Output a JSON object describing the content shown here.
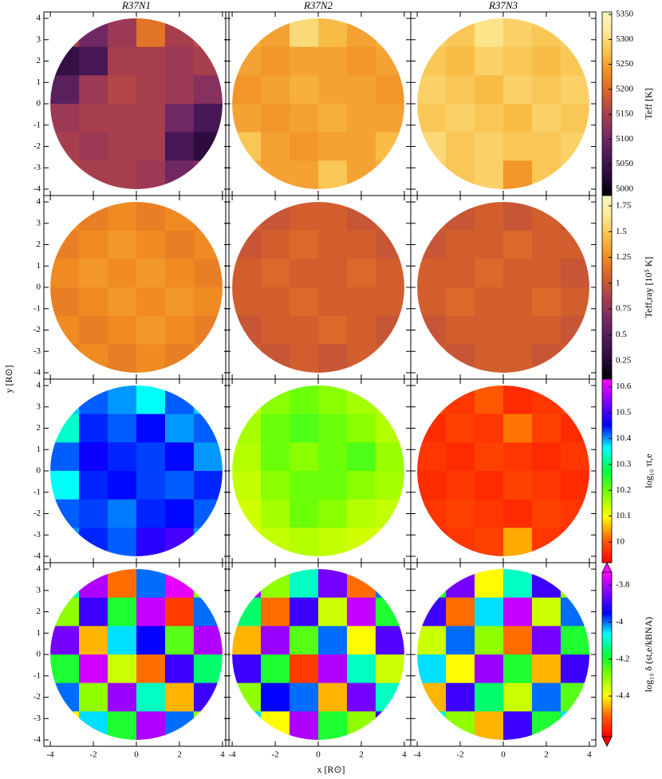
{
  "chart_data": {
    "type": "heatmap",
    "columns": [
      "R37N1",
      "R37N2",
      "R37N3"
    ],
    "x_label": "x [R⊙]",
    "y_label": "y [R⊙]",
    "xlim": [
      -4.3,
      4.3
    ],
    "ylim": [
      -4.3,
      4.3
    ],
    "xticks": [
      -4,
      -2,
      0,
      2,
      4
    ],
    "yticks": [
      -4,
      -3,
      -2,
      -1,
      0,
      1,
      2,
      3,
      4
    ],
    "rows": [
      {
        "colorbar_label": "Teff [K]",
        "clim": [
          4987,
          5355
        ],
        "cticks": [
          5000,
          5050,
          5100,
          5150,
          5200,
          5250,
          5300,
          5350
        ],
        "extend": false,
        "colors": [
          "#000004",
          "#2a0a3c",
          "#4e1a5a",
          "#7a2c64",
          "#a83e4e",
          "#d4602c",
          "#f08c22",
          "#f9c04a",
          "#fbe890",
          "#fcf8c8"
        ],
        "panels": [
          [
            [
              5150,
              5100,
              5140,
              5210,
              5150,
              5170
            ],
            [
              5040,
              5060,
              5150,
              5150,
              5140,
              5150
            ],
            [
              5080,
              5140,
              5160,
              5150,
              5140,
              5120
            ],
            [
              5140,
              5150,
              5150,
              5150,
              5100,
              5060
            ],
            [
              5150,
              5140,
              5150,
              5150,
              5060,
              5030
            ],
            [
              5160,
              5150,
              5150,
              5140,
              5100,
              5120
            ]
          ],
          [
            [
              5260,
              5250,
              5300,
              5270,
              5250,
              5260
            ],
            [
              5250,
              5240,
              5250,
              5250,
              5240,
              5250
            ],
            [
              5240,
              5250,
              5260,
              5250,
              5250,
              5240
            ],
            [
              5250,
              5240,
              5250,
              5260,
              5250,
              5250
            ],
            [
              5280,
              5250,
              5240,
              5250,
              5250,
              5270
            ],
            [
              5260,
              5250,
              5250,
              5280,
              5250,
              5260
            ]
          ],
          [
            [
              5290,
              5280,
              5310,
              5290,
              5280,
              5290
            ],
            [
              5280,
              5270,
              5290,
              5280,
              5270,
              5280
            ],
            [
              5290,
              5280,
              5270,
              5290,
              5280,
              5290
            ],
            [
              5280,
              5290,
              5280,
              5270,
              5290,
              5280
            ],
            [
              5300,
              5280,
              5290,
              5280,
              5280,
              5290
            ],
            [
              5290,
              5280,
              5290,
              5240,
              5280,
              5290
            ]
          ]
        ]
      },
      {
        "colorbar_label": "Teff,ray [10⁵ K]",
        "clim": [
          0.07,
          1.85
        ],
        "cticks": [
          0.25,
          0.5,
          0.75,
          1.0,
          1.25,
          1.5,
          1.75
        ],
        "extend": false,
        "colors": [
          "#000004",
          "#2a0a3c",
          "#4e1a5a",
          "#7a2c64",
          "#a83e4e",
          "#d4602c",
          "#f08c22",
          "#f9c04a",
          "#fbe890",
          "#fcf8c8"
        ],
        "panels": [
          [
            [
              1.25,
              1.2,
              1.25,
              1.2,
              1.25,
              1.2
            ],
            [
              1.2,
              1.25,
              1.3,
              1.25,
              1.2,
              1.25
            ],
            [
              1.25,
              1.3,
              1.25,
              1.3,
              1.25,
              1.2
            ],
            [
              1.2,
              1.25,
              1.3,
              1.25,
              1.3,
              1.25
            ],
            [
              1.25,
              1.2,
              1.25,
              1.3,
              1.25,
              1.2
            ],
            [
              1.2,
              1.25,
              1.2,
              1.25,
              1.2,
              1.25
            ]
          ],
          [
            [
              1.05,
              1.0,
              1.05,
              1.05,
              1.0,
              1.05
            ],
            [
              1.0,
              1.05,
              1.1,
              1.05,
              1.05,
              1.0
            ],
            [
              1.05,
              1.1,
              1.05,
              1.05,
              1.1,
              1.05
            ],
            [
              1.05,
              1.05,
              1.1,
              1.05,
              1.05,
              1.05
            ],
            [
              1.0,
              1.05,
              1.05,
              1.1,
              1.05,
              1.0
            ],
            [
              1.05,
              1.0,
              1.05,
              1.0,
              1.05,
              1.05
            ]
          ],
          [
            [
              1.05,
              1.0,
              1.05,
              1.0,
              1.05,
              1.0
            ],
            [
              1.0,
              1.05,
              1.05,
              1.1,
              1.05,
              1.05
            ],
            [
              1.05,
              1.05,
              1.1,
              1.05,
              1.05,
              1.0
            ],
            [
              1.05,
              1.1,
              1.05,
              1.05,
              1.1,
              1.05
            ],
            [
              1.0,
              1.05,
              1.05,
              1.05,
              1.05,
              1.0
            ],
            [
              1.05,
              1.0,
              1.05,
              1.05,
              1.0,
              1.05
            ]
          ]
        ]
      },
      {
        "colorbar_label": "log₁₀ τt,e",
        "clim": [
          9.92,
          10.63
        ],
        "cticks": [
          10.0,
          10.1,
          10.2,
          10.3,
          10.4,
          10.5,
          10.6
        ],
        "extend": false,
        "colors": [
          "#ff0000",
          "#ff6000",
          "#ffff00",
          "#80ff00",
          "#00ff40",
          "#00ffff",
          "#0000ff",
          "#8000ff",
          "#ff00ff"
        ],
        "panels": [
          [
            [
              10.38,
              10.42,
              10.4,
              10.36,
              10.42,
              10.38
            ],
            [
              10.34,
              10.44,
              10.42,
              10.45,
              10.4,
              10.42
            ],
            [
              10.42,
              10.46,
              10.44,
              10.43,
              10.45,
              10.4
            ],
            [
              10.36,
              10.44,
              10.45,
              10.43,
              10.42,
              10.44
            ],
            [
              10.42,
              10.43,
              10.41,
              10.44,
              10.45,
              10.42
            ],
            [
              10.4,
              10.44,
              10.42,
              10.48,
              10.5,
              10.4
            ]
          ],
          [
            [
              10.14,
              10.18,
              10.2,
              10.18,
              10.16,
              10.15
            ],
            [
              10.16,
              10.2,
              10.22,
              10.2,
              10.18,
              10.15
            ],
            [
              10.15,
              10.2,
              10.18,
              10.2,
              10.22,
              10.17
            ],
            [
              10.14,
              10.18,
              10.2,
              10.2,
              10.18,
              10.16
            ],
            [
              10.13,
              10.16,
              10.2,
              10.18,
              10.15,
              10.14
            ],
            [
              10.12,
              10.14,
              10.15,
              10.14,
              10.13,
              10.12
            ]
          ],
          [
            [
              9.98,
              9.97,
              10.0,
              9.96,
              9.97,
              9.98
            ],
            [
              9.96,
              9.98,
              9.97,
              10.02,
              9.98,
              9.96
            ],
            [
              9.97,
              9.96,
              9.98,
              9.97,
              9.96,
              9.97
            ],
            [
              9.96,
              9.97,
              9.96,
              9.98,
              9.97,
              9.96
            ],
            [
              9.97,
              9.98,
              9.97,
              9.96,
              9.98,
              9.97
            ],
            [
              9.96,
              9.97,
              9.98,
              10.05,
              9.97,
              9.96
            ]
          ]
        ]
      },
      {
        "colorbar_label": "log₁₀ δ (st,e/kBNA)",
        "clim": [
          -4.62,
          -3.73
        ],
        "cticks": [
          -4.4,
          -4.2,
          -4.0,
          -3.8
        ],
        "extend": true,
        "colors": [
          "#ff0000",
          "#ff6000",
          "#ffff00",
          "#80ff00",
          "#00ff40",
          "#00ffff",
          "#0000ff",
          "#8000ff",
          "#ff00ff"
        ],
        "panels": [
          [
            [
              -4.1,
              -3.8,
              -4.5,
              -4.0,
              -3.75,
              -4.3
            ],
            [
              -4.3,
              -3.9,
              -4.2,
              -3.78,
              -4.55,
              -4.0
            ],
            [
              -3.85,
              -4.45,
              -4.05,
              -3.95,
              -4.25,
              -3.8
            ],
            [
              -4.2,
              -3.77,
              -4.35,
              -4.5,
              -3.9,
              -4.15
            ],
            [
              -4.0,
              -4.3,
              -3.82,
              -4.1,
              -4.45,
              -3.9
            ],
            [
              -4.4,
              -4.05,
              -4.2,
              -3.8,
              -4.0,
              -4.3
            ]
          ],
          [
            [
              -3.8,
              -4.3,
              -4.1,
              -3.85,
              -4.5,
              -4.0
            ],
            [
              -4.15,
              -4.5,
              -3.9,
              -4.35,
              -3.78,
              -4.2
            ],
            [
              -4.45,
              -3.82,
              -4.25,
              -4.0,
              -4.4,
              -3.88
            ],
            [
              -3.9,
              -4.2,
              -4.55,
              -3.8,
              -4.1,
              -4.35
            ],
            [
              -4.3,
              -3.95,
              -4.0,
              -4.45,
              -3.85,
              -4.1
            ],
            [
              -4.05,
              -4.4,
              -3.8,
              -4.2,
              -4.3,
              -3.9
            ]
          ],
          [
            [
              -4.2,
              -3.85,
              -4.4,
              -4.1,
              -3.9,
              -4.3
            ],
            [
              -3.9,
              -4.5,
              -4.05,
              -3.78,
              -4.35,
              -4.0
            ],
            [
              -4.35,
              -4.0,
              -4.3,
              -4.5,
              -3.85,
              -4.2
            ],
            [
              -4.05,
              -4.4,
              -3.82,
              -4.2,
              -4.45,
              -3.9
            ],
            [
              -4.45,
              -3.9,
              -4.15,
              -4.35,
              -4.0,
              -4.25
            ],
            [
              -4.1,
              -4.3,
              -4.45,
              -3.9,
              -4.2,
              -4.05
            ]
          ]
        ]
      }
    ]
  }
}
